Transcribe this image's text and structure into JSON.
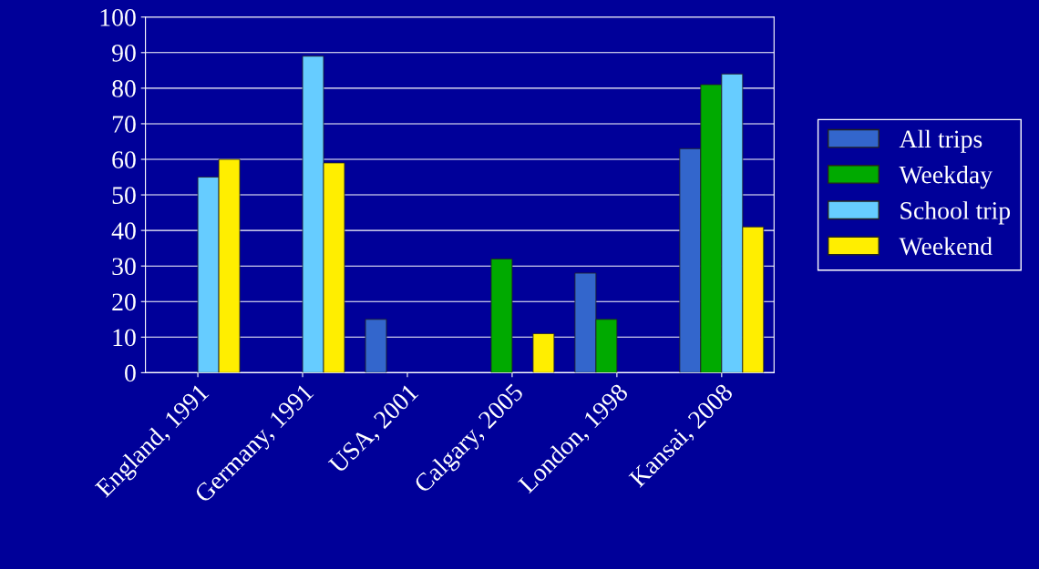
{
  "chart_data": {
    "type": "bar",
    "categories": [
      "England, 1991",
      "Germany, 1991",
      "USA, 2001",
      "Calgary, 2005",
      "London, 1998",
      "Kansai, 2008"
    ],
    "series": [
      {
        "name": "All trips",
        "color": "#3366cc",
        "values": [
          null,
          null,
          15,
          null,
          28,
          63
        ]
      },
      {
        "name": "Weekday",
        "color": "#00aa00",
        "values": [
          null,
          null,
          null,
          32,
          15,
          81
        ]
      },
      {
        "name": "School trip",
        "color": "#66ccff",
        "values": [
          55,
          89,
          null,
          null,
          null,
          84
        ]
      },
      {
        "name": "Weekend",
        "color": "#ffee00",
        "values": [
          60,
          59,
          null,
          11,
          null,
          41
        ]
      }
    ],
    "ylim": [
      0,
      100
    ],
    "yticks": [
      0,
      10,
      20,
      30,
      40,
      50,
      60,
      70,
      80,
      90,
      100
    ],
    "grid": "y",
    "legend": "right"
  }
}
